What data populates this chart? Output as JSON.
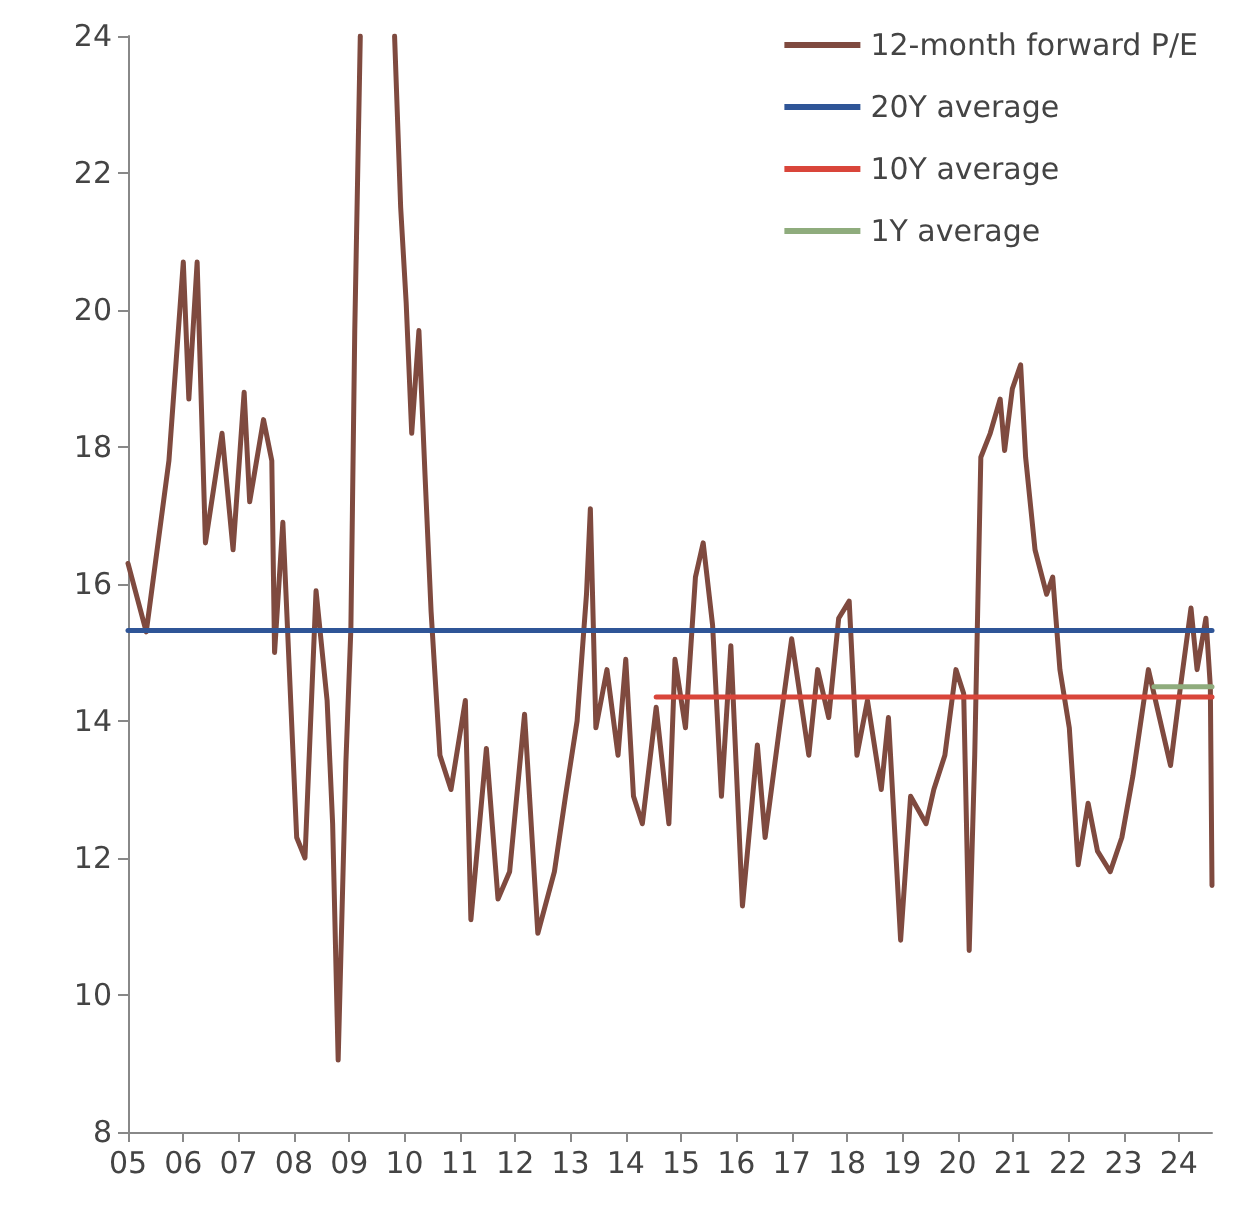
{
  "chart_data": {
    "type": "line",
    "xlim": [
      2005,
      2024.6
    ],
    "ylim": [
      8,
      24
    ],
    "xticks": [
      {
        "value": 2005,
        "label": "05"
      },
      {
        "value": 2006,
        "label": "06"
      },
      {
        "value": 2007,
        "label": "07"
      },
      {
        "value": 2008,
        "label": "08"
      },
      {
        "value": 2009,
        "label": "09"
      },
      {
        "value": 2010,
        "label": "10"
      },
      {
        "value": 2011,
        "label": "11"
      },
      {
        "value": 2012,
        "label": "12"
      },
      {
        "value": 2013,
        "label": "13"
      },
      {
        "value": 2014,
        "label": "14"
      },
      {
        "value": 2015,
        "label": "15"
      },
      {
        "value": 2016,
        "label": "16"
      },
      {
        "value": 2017,
        "label": "17"
      },
      {
        "value": 2018,
        "label": "18"
      },
      {
        "value": 2019,
        "label": "19"
      },
      {
        "value": 2020,
        "label": "20"
      },
      {
        "value": 2021,
        "label": "21"
      },
      {
        "value": 2022,
        "label": "22"
      },
      {
        "value": 2023,
        "label": "23"
      },
      {
        "value": 2024,
        "label": "24"
      }
    ],
    "yticks": [
      8,
      10,
      12,
      14,
      16,
      18,
      20,
      22,
      24
    ],
    "grid": false,
    "legend": "top right",
    "marker": "none",
    "line_style": "solid",
    "series": [
      {
        "name": "12-month forward P/E",
        "color": "#7f4a3f",
        "x": [
          2005,
          2005.33,
          2005.74,
          2006,
          2006.1,
          2006.25,
          2006.4,
          2006.7,
          2006.9,
          2007.1,
          2007.2,
          2007.45,
          2007.6,
          2007.65,
          2007.8,
          2008.05,
          2008.2,
          2008.4,
          2008.6,
          2008.7,
          2008.8,
          2008.94,
          2009.03,
          2009.1,
          2009.2,
          2009.5,
          2009.82,
          2009.93,
          2010.03,
          2010.13,
          2010.26,
          2010.37,
          2010.48,
          2010.64,
          2010.84,
          2011.1,
          2011.2,
          2011.48,
          2011.69,
          2011.9,
          2012.17,
          2012.41,
          2012.71,
          2012.91,
          2013.12,
          2013.29,
          2013.36,
          2013.46,
          2013.66,
          2013.86,
          2014,
          2014.14,
          2014.3,
          2014.55,
          2014.78,
          2014.89,
          2015.08,
          2015.26,
          2015.4,
          2015.57,
          2015.73,
          2015.9,
          2016.11,
          2016.38,
          2016.52,
          2016.78,
          2017,
          2017.31,
          2017.47,
          2017.67,
          2017.85,
          2018.04,
          2018.18,
          2018.37,
          2018.62,
          2018.75,
          2018.97,
          2019.15,
          2019.43,
          2019.57,
          2019.77,
          2019.97,
          2020.11,
          2020.21,
          2020.31,
          2020.42,
          2020.59,
          2020.77,
          2020.85,
          2020.99,
          2021.14,
          2021.23,
          2021.4,
          2021.61,
          2021.72,
          2021.85,
          2022.02,
          2022.18,
          2022.36,
          2022.53,
          2022.76,
          2022.97,
          2023.17,
          2023.45,
          2023.65,
          2023.85,
          2024.03,
          2024.22,
          2024.33,
          2024.49,
          2024.57,
          2024.6
        ],
        "values": [
          16.3,
          15.3,
          17.8,
          20.7,
          18.7,
          20.7,
          16.6,
          18.2,
          16.5,
          18.8,
          17.2,
          18.4,
          17.8,
          15,
          16.9,
          12.3,
          12,
          15.9,
          14.3,
          12.5,
          9.05,
          13.4,
          15.35,
          19.7,
          24,
          null,
          24,
          21.5,
          20.1,
          18.2,
          19.7,
          17.6,
          15.6,
          13.5,
          13,
          14.3,
          11.1,
          13.6,
          11.4,
          11.8,
          14.1,
          10.9,
          11.8,
          12.9,
          14,
          15.85,
          17.1,
          13.9,
          14.75,
          13.5,
          14.9,
          12.9,
          12.5,
          14.2,
          12.5,
          14.9,
          13.9,
          16.1,
          16.6,
          15.4,
          12.9,
          15.1,
          11.3,
          13.65,
          12.3,
          13.9,
          15.2,
          13.5,
          14.75,
          14.05,
          15.5,
          15.75,
          13.5,
          14.3,
          13,
          14.05,
          10.8,
          12.9,
          12.5,
          13,
          13.5,
          14.75,
          14.4,
          10.65,
          13.5,
          17.85,
          18.2,
          18.7,
          17.95,
          18.85,
          19.2,
          17.85,
          16.5,
          15.85,
          16.1,
          14.75,
          13.9,
          11.9,
          12.8,
          12.1,
          11.8,
          12.3,
          13.2,
          14.75,
          14.05,
          13.35,
          14.5,
          15.65,
          14.75,
          15.5,
          14.5,
          11.6
        ]
      },
      {
        "name": "20Y average",
        "color": "#2f5597",
        "x": [
          2005,
          2024.6
        ],
        "values": [
          15.32,
          15.32
        ]
      },
      {
        "name": "10Y average",
        "color": "#d9453a",
        "x": [
          2014.55,
          2024.6
        ],
        "values": [
          14.35,
          14.35
        ]
      },
      {
        "name": "1Y average",
        "color": "#8fac7d",
        "x": [
          2023.55,
          2024.6
        ],
        "values": [
          14.5,
          14.5
        ]
      }
    ]
  }
}
